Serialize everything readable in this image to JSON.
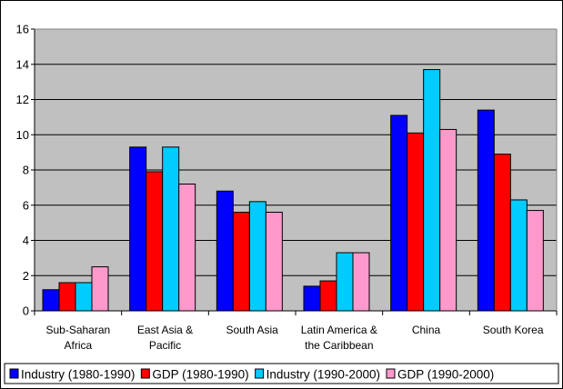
{
  "chart_data": {
    "type": "bar",
    "title": "",
    "xlabel": "",
    "ylabel": "",
    "ylim": [
      0,
      16
    ],
    "yticks": [
      0,
      2,
      4,
      6,
      8,
      10,
      12,
      14,
      16
    ],
    "grid": true,
    "plot_background": "#C0C0C0",
    "legend_position": "bottom",
    "categories": [
      [
        "Sub-Saharan",
        "Africa"
      ],
      [
        "East Asia &",
        "Pacific"
      ],
      [
        "South Asia"
      ],
      [
        "Latin America &",
        "the Caribbean"
      ],
      [
        "China"
      ],
      [
        "South Korea"
      ]
    ],
    "series": [
      {
        "name": "Industry (1980-1990)",
        "color": "#0000FF",
        "values": [
          1.2,
          9.3,
          6.8,
          1.4,
          11.1,
          11.4
        ]
      },
      {
        "name": "GDP (1980-1990)",
        "color": "#FF0000",
        "values": [
          1.6,
          7.9,
          5.6,
          1.7,
          10.1,
          8.9
        ]
      },
      {
        "name": "Industry (1990-2000)",
        "color": "#00CCFF",
        "values": [
          1.6,
          9.3,
          6.2,
          3.3,
          13.7,
          6.3
        ]
      },
      {
        "name": "GDP (1990-2000)",
        "color": "#FF99CC",
        "values": [
          2.5,
          7.2,
          5.6,
          3.3,
          10.3,
          5.7
        ]
      }
    ]
  }
}
